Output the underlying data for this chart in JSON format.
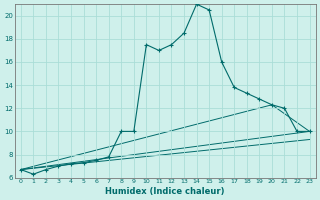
{
  "xlabel": "Humidex (Indice chaleur)",
  "xlim": [
    -0.5,
    23.5
  ],
  "ylim": [
    6,
    21
  ],
  "yticks": [
    6,
    8,
    10,
    12,
    14,
    16,
    18,
    20
  ],
  "xticks": [
    0,
    1,
    2,
    3,
    4,
    5,
    6,
    7,
    8,
    9,
    10,
    11,
    12,
    13,
    14,
    15,
    16,
    17,
    18,
    19,
    20,
    21,
    22,
    23
  ],
  "background_color": "#cff0eb",
  "grid_color": "#aaddd7",
  "line_color": "#006b6b",
  "series_main": {
    "x": [
      0,
      1,
      2,
      3,
      4,
      5,
      6,
      7,
      8,
      9,
      10,
      11,
      12,
      13,
      14,
      15,
      16,
      17,
      18,
      19,
      20,
      21,
      22,
      23
    ],
    "y": [
      6.7,
      6.3,
      6.7,
      7.0,
      7.2,
      7.3,
      7.5,
      7.8,
      10.0,
      10.0,
      17.5,
      17.0,
      17.5,
      18.5,
      21.0,
      20.5,
      16.0,
      13.8,
      13.3,
      12.8,
      12.3,
      12.0,
      10.0,
      10.0
    ]
  },
  "series_line1": {
    "x": [
      0,
      23
    ],
    "y": [
      6.7,
      10.0
    ]
  },
  "series_line2": {
    "x": [
      0,
      20,
      23
    ],
    "y": [
      6.7,
      12.3,
      10.0
    ]
  },
  "series_line3": {
    "x": [
      0,
      23
    ],
    "y": [
      6.7,
      9.3
    ]
  }
}
